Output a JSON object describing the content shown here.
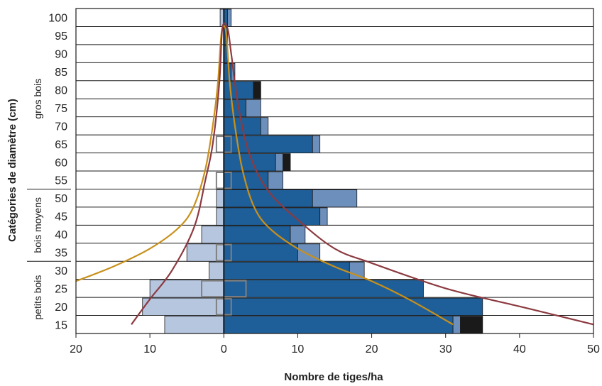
{
  "chart_data": {
    "type": "bar",
    "xlabel": "Nombre de tiges/ha",
    "ylabel": "Catégories de diamètre (cm)",
    "categories": [
      "15",
      "20",
      "25",
      "30",
      "35",
      "40",
      "45",
      "50",
      "55",
      "60",
      "65",
      "70",
      "75",
      "80",
      "85",
      "90",
      "95",
      "100"
    ],
    "xlim": [
      -20,
      50
    ],
    "x_ticks": [
      -20,
      -10,
      0,
      10,
      20,
      30,
      40,
      50
    ],
    "x_tick_labels": [
      "20",
      "10",
      "0",
      "10",
      "20",
      "30",
      "40",
      "50"
    ],
    "groups": [
      {
        "label": "petits bois",
        "from": "15",
        "to": "30"
      },
      {
        "label": "bois moyens",
        "from": "35",
        "to": "50"
      },
      {
        "label": "gros bois",
        "from": "55",
        "to": "100"
      }
    ],
    "series": [
      {
        "color": "#1f5f99",
        "side": "right",
        "values": [
          31,
          35,
          27,
          17,
          10,
          9,
          13,
          12,
          6,
          7,
          12,
          5,
          3,
          4,
          1,
          0.5,
          0.5,
          0.5
        ]
      },
      {
        "color": "#6d8fbb",
        "side": "right",
        "values": [
          1,
          0,
          0,
          2,
          3,
          2,
          1,
          6,
          2,
          1,
          1,
          1,
          2,
          0,
          0.5,
          0,
          0,
          0.5
        ]
      },
      {
        "color": "#1a1a1a",
        "side": "right",
        "values": [
          3,
          0,
          0,
          0,
          0,
          0,
          0,
          0,
          0,
          1,
          0,
          0,
          0,
          1,
          0,
          0,
          0,
          0
        ]
      },
      {
        "color": "#b7c6df",
        "side": "left",
        "values": [
          8,
          11,
          10,
          2,
          5,
          3,
          1,
          1,
          0,
          0,
          0,
          0,
          0,
          0,
          0,
          0,
          0,
          0.5
        ]
      },
      {
        "color": "#808080",
        "side": "overlay",
        "values": [
          0,
          1,
          3,
          0,
          1,
          0,
          0,
          0,
          1,
          0,
          1,
          0,
          0,
          0,
          0,
          0,
          0,
          0
        ]
      }
    ],
    "curves": [
      {
        "color": "#c8901c",
        "points": [
          [
            -20,
            27
          ],
          [
            -15,
            31
          ],
          [
            -10,
            36
          ],
          [
            -6,
            42
          ],
          [
            -4,
            48
          ],
          [
            -2.5,
            58
          ],
          [
            -1.5,
            70
          ],
          [
            -0.8,
            82
          ],
          [
            -0.3,
            96
          ],
          [
            0.3,
            96
          ],
          [
            0.8,
            82
          ],
          [
            1.5,
            70
          ],
          [
            2.5,
            58
          ],
          [
            4,
            48
          ],
          [
            6,
            42
          ],
          [
            10,
            36
          ],
          [
            15,
            31
          ],
          [
            20,
            27
          ],
          [
            25,
            22
          ],
          [
            31,
            15
          ]
        ]
      },
      {
        "color": "#8c3a40",
        "points": [
          [
            -12.5,
            15
          ],
          [
            -10,
            22
          ],
          [
            -7,
            30
          ],
          [
            -4,
            42
          ],
          [
            -2.5,
            55
          ],
          [
            -1.5,
            65
          ],
          [
            -0.6,
            82
          ],
          [
            -0.2,
            97
          ],
          [
            0.5,
            97
          ],
          [
            1,
            90
          ],
          [
            2,
            75
          ],
          [
            3.5,
            62
          ],
          [
            6,
            52
          ],
          [
            10,
            44
          ],
          [
            15,
            36
          ],
          [
            20,
            32
          ],
          [
            30,
            25
          ],
          [
            40,
            20
          ],
          [
            50,
            15
          ]
        ]
      }
    ]
  }
}
